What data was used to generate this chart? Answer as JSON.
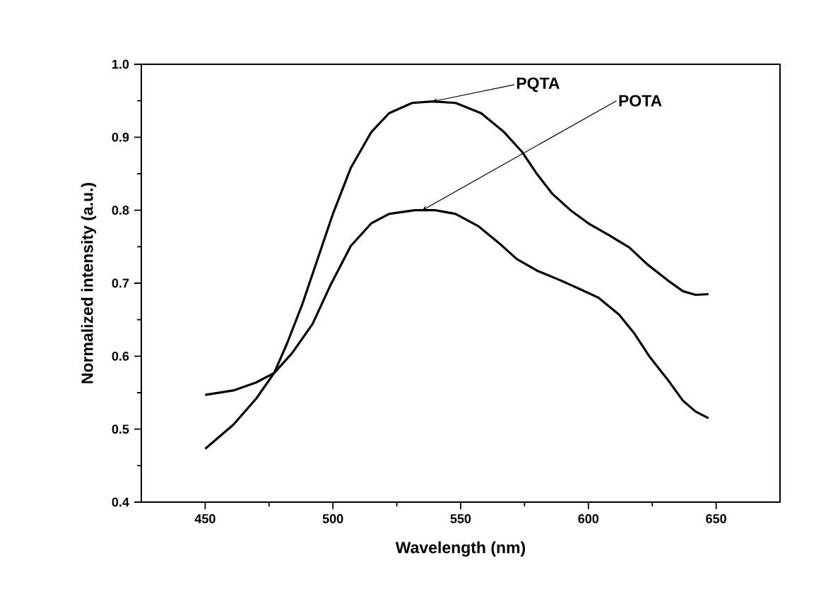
{
  "chart_data": {
    "type": "line",
    "xlabel": "Wavelength (nm)",
    "ylabel": "Normalized intensity (a.u.)",
    "xlim": [
      425,
      675
    ],
    "ylim": [
      0.4,
      1.0
    ],
    "xticks": [
      450,
      500,
      550,
      600,
      650
    ],
    "yticks": [
      0.4,
      0.5,
      0.6,
      0.7,
      0.8,
      0.9,
      {
        "value": 1.0,
        "label": "1.0"
      }
    ],
    "annotations": [
      {
        "text": "PQTA",
        "x": 539,
        "y": 0.949
      },
      {
        "text": "POTA",
        "x": 535,
        "y": 0.8
      }
    ],
    "line_style": "solid",
    "marker": "none",
    "grid": false,
    "legend": false,
    "series": [
      {
        "color": "#000000",
        "x": [
          450,
          461,
          470,
          477,
          482,
          488,
          494,
          500,
          507,
          515,
          522,
          531,
          539,
          548,
          558,
          567,
          574,
          580,
          586,
          593,
          600,
          608,
          616,
          623,
          631,
          637,
          642,
          647
        ],
        "values": [
          0.473,
          0.506,
          0.542,
          0.577,
          0.617,
          0.671,
          0.733,
          0.795,
          0.858,
          0.907,
          0.933,
          0.947,
          0.949,
          0.947,
          0.933,
          0.907,
          0.88,
          0.849,
          0.822,
          0.8,
          0.782,
          0.766,
          0.749,
          0.726,
          0.704,
          0.689,
          0.684,
          0.685
        ]
      },
      {
        "color": "#000000",
        "x": [
          450,
          461,
          470,
          477,
          484,
          492,
          499,
          507,
          515,
          522,
          532,
          540,
          548,
          557,
          565,
          572,
          580,
          589,
          596,
          604,
          612,
          618,
          624,
          631,
          637,
          642,
          647
        ],
        "values": [
          0.547,
          0.553,
          0.564,
          0.577,
          0.604,
          0.644,
          0.697,
          0.751,
          0.782,
          0.795,
          0.8,
          0.8,
          0.795,
          0.778,
          0.755,
          0.733,
          0.717,
          0.704,
          0.693,
          0.68,
          0.657,
          0.631,
          0.599,
          0.568,
          0.539,
          0.524,
          0.515
        ]
      }
    ]
  }
}
